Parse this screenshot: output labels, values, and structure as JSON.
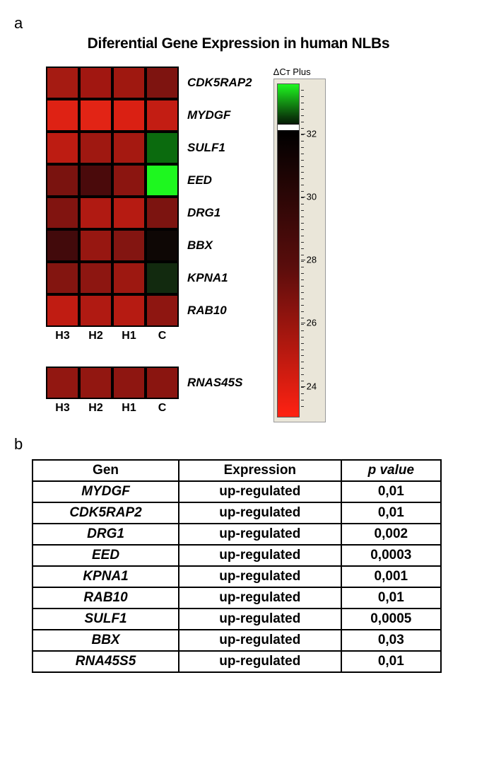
{
  "panel_a_label": "a",
  "panel_b_label": "b",
  "title": "Diferential Gene Expression in human NLBs",
  "legend_title": "ΔCᴛ Plus",
  "heatmap": {
    "type": "heatmap",
    "columns": [
      "H3",
      "H2",
      "H1",
      "C"
    ],
    "rows": [
      {
        "label": "CDK5RAP2",
        "cells": [
          "#a51b12",
          "#a11711",
          "#9f1810",
          "#7e1410"
        ]
      },
      {
        "label": "MYDGF",
        "cells": [
          "#de2214",
          "#e22415",
          "#da2013",
          "#c31d13"
        ]
      },
      {
        "label": "SULF1",
        "cells": [
          "#bd1c12",
          "#9f1811",
          "#a51911",
          "#0b6b0e"
        ]
      },
      {
        "label": "EED",
        "cells": [
          "#7a130f",
          "#4a0a0b",
          "#8b1510",
          "#1ef71f"
        ]
      },
      {
        "label": "DRG1",
        "cells": [
          "#811410",
          "#b01a12",
          "#b61b12",
          "#7c1410"
        ]
      },
      {
        "label": "BBX",
        "cells": [
          "#420a0b",
          "#971711",
          "#831511",
          "#0e0705"
        ]
      },
      {
        "label": "KPNA1",
        "cells": [
          "#831510",
          "#8d1611",
          "#9d1811",
          "#122a0f"
        ]
      },
      {
        "label": "RAB10",
        "cells": [
          "#c01c12",
          "#b01a12",
          "#b61b12",
          "#8e1611"
        ]
      }
    ],
    "reference_row": {
      "label": "RNAS45S",
      "cells": [
        "#921711",
        "#921711",
        "#8e1611",
        "#8a1510"
      ]
    }
  },
  "colorbar": {
    "top_color": "#1ef71f",
    "mid_top_color": "#0a3a0a",
    "mid_color": "#000000",
    "mid_bottom_color": "#5a0d0c",
    "bottom_color": "#ff2212",
    "marker_position_pct": 12,
    "ticks": [
      {
        "pos_pct": 15,
        "label": "32"
      },
      {
        "pos_pct": 34,
        "label": "30"
      },
      {
        "pos_pct": 53,
        "label": "28"
      },
      {
        "pos_pct": 72,
        "label": "26"
      },
      {
        "pos_pct": 91,
        "label": "24"
      }
    ],
    "background_color": "#eae6d9"
  },
  "table": {
    "columns": [
      "Gen",
      "Expression",
      "p value"
    ],
    "rows": [
      [
        "MYDGF",
        "up-regulated",
        "0,01"
      ],
      [
        "CDK5RAP2",
        "up-regulated",
        "0,01"
      ],
      [
        "DRG1",
        "up-regulated",
        "0,002"
      ],
      [
        "EED",
        "up-regulated",
        "0,0003"
      ],
      [
        "KPNA1",
        "up-regulated",
        "0,001"
      ],
      [
        "RAB10",
        "up-regulated",
        "0,01"
      ],
      [
        "SULF1",
        "up-regulated",
        "0,0005"
      ],
      [
        "BBX",
        "up-regulated",
        "0,03"
      ],
      [
        "RNA45S5",
        "up-regulated",
        "0,01"
      ]
    ]
  }
}
